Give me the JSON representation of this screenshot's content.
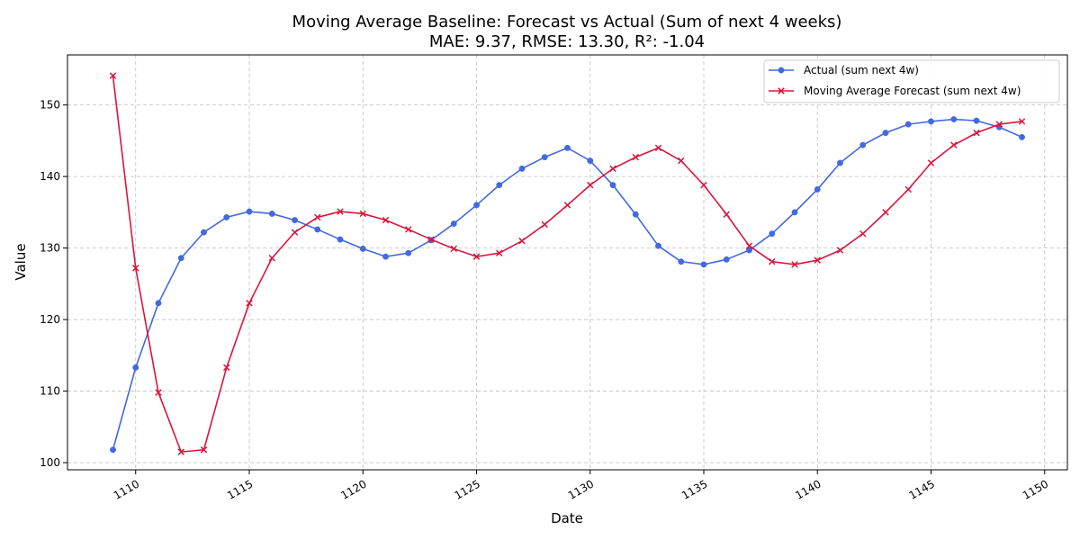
{
  "chart_data": {
    "type": "line",
    "title_line1": "Moving Average Baseline: Forecast vs Actual (Sum of next 4 weeks)",
    "title_line2": "MAE: 9.37, RMSE: 13.30, R²: -1.04",
    "xlabel": "Date",
    "ylabel": "Value",
    "xlim": [
      1107,
      1151
    ],
    "ylim": [
      99,
      157
    ],
    "xticks": [
      1110,
      1115,
      1120,
      1125,
      1130,
      1135,
      1140,
      1145,
      1150
    ],
    "yticks": [
      100,
      110,
      120,
      130,
      140,
      150
    ],
    "grid": true,
    "legend_position": "top-right",
    "x": [
      1109,
      1110,
      1111,
      1112,
      1113,
      1114,
      1115,
      1116,
      1117,
      1118,
      1119,
      1120,
      1121,
      1122,
      1123,
      1124,
      1125,
      1126,
      1127,
      1128,
      1129,
      1130,
      1131,
      1132,
      1133,
      1134,
      1135,
      1136,
      1137,
      1138,
      1139,
      1140,
      1141,
      1142,
      1143,
      1144,
      1145,
      1146,
      1147,
      1148,
      1149
    ],
    "series": [
      {
        "name": "Actual (sum next 4w)",
        "color": "#4169e1",
        "marker": "circle",
        "values": [
          101.8,
          113.3,
          122.3,
          128.6,
          132.2,
          134.3,
          135.1,
          134.8,
          133.9,
          132.6,
          131.2,
          129.9,
          128.8,
          129.3,
          131.1,
          133.4,
          136.0,
          138.8,
          141.1,
          142.7,
          144.0,
          142.2,
          138.8,
          134.7,
          130.3,
          128.1,
          127.7,
          128.4,
          129.7,
          132.0,
          135.0,
          138.2,
          141.9,
          144.4,
          146.1,
          147.3,
          147.7,
          148.0,
          147.8,
          146.9,
          145.5
        ]
      },
      {
        "name": "Moving Average Forecast (sum next 4w)",
        "color": "#dc143c",
        "marker": "x",
        "values": [
          154.1,
          127.2,
          109.8,
          101.5,
          101.8,
          113.3,
          122.3,
          128.6,
          132.2,
          134.3,
          135.1,
          134.8,
          133.9,
          132.6,
          131.2,
          129.9,
          128.8,
          129.3,
          131.0,
          133.3,
          136.0,
          138.8,
          141.1,
          142.7,
          144.0,
          142.2,
          138.8,
          134.7,
          130.3,
          128.1,
          127.7,
          128.3,
          129.7,
          132.0,
          135.0,
          138.2,
          141.9,
          144.4,
          146.1,
          147.3,
          147.7
        ]
      }
    ]
  }
}
